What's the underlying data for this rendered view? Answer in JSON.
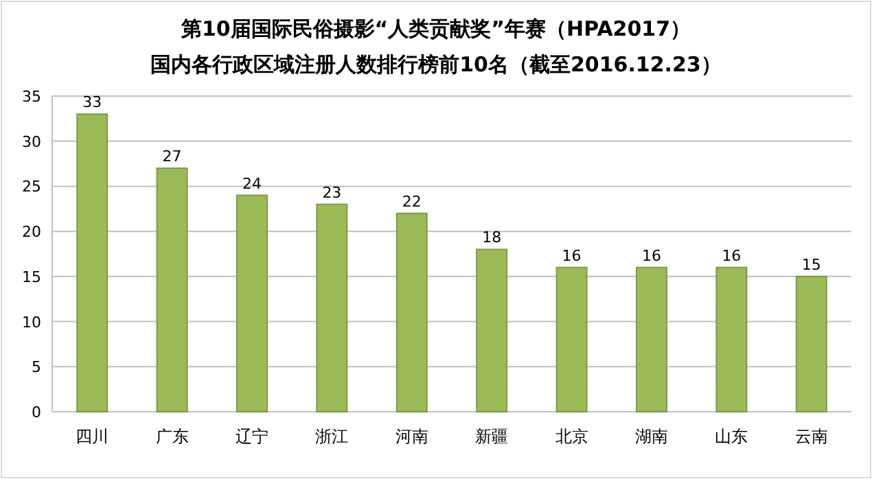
{
  "chart_data": {
    "type": "bar",
    "title": "第10届国际民俗摄影“人类贡献奖”年赛（HPA2017）",
    "subtitle": "国内各行政区域注册人数排行榜前10名（截至2016.12.23）",
    "categories": [
      "四川",
      "广东",
      "辽宁",
      "浙江",
      "河南",
      "新疆",
      "北京",
      "湖南",
      "山东",
      "云南"
    ],
    "values": [
      33,
      27,
      24,
      23,
      22,
      18,
      16,
      16,
      16,
      15
    ],
    "color": "#9bbb59",
    "ylim": [
      0,
      35
    ],
    "yticks": [
      0,
      5,
      10,
      15,
      20,
      25,
      30,
      35
    ],
    "grid": "y",
    "data_labels": true
  }
}
